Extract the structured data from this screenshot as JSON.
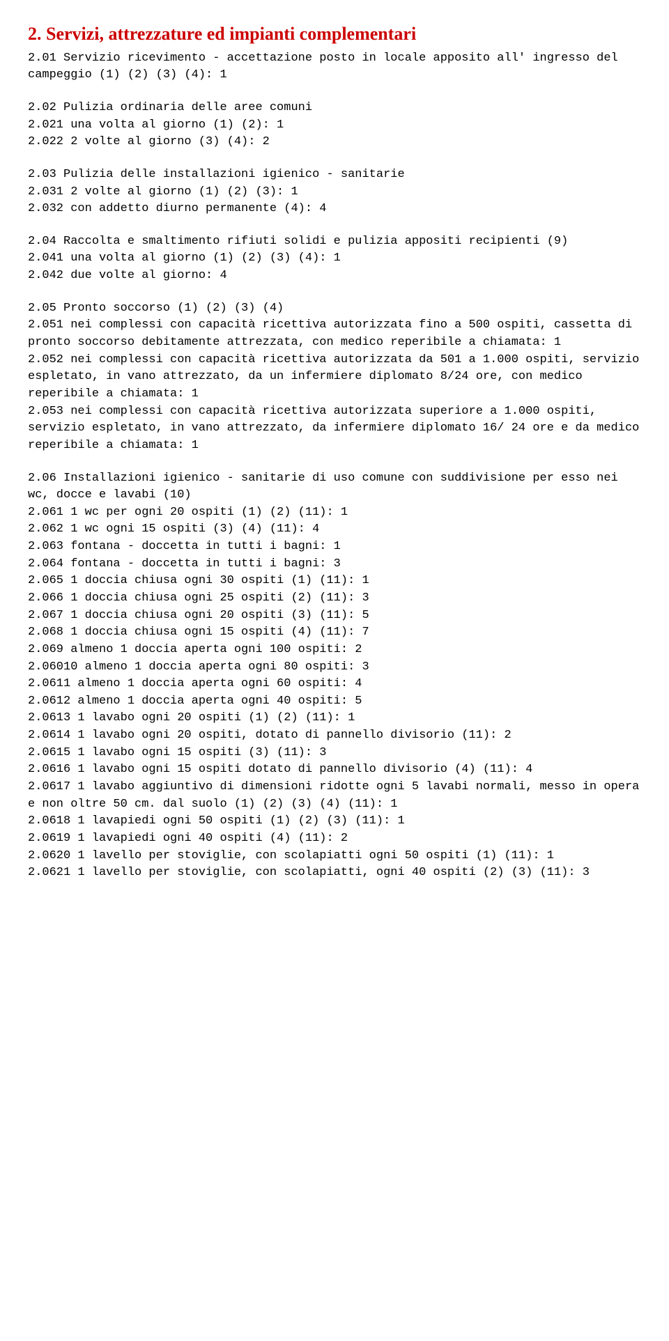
{
  "heading": "2. Servizi, attrezzature ed impianti complementari",
  "sections": [
    {
      "lines": [
        "2.01 Servizio ricevimento - accettazione posto in locale apposito all' ingresso del campeggio (1) (2) (3) (4): 1"
      ]
    },
    {
      "lines": [
        "2.02 Pulizia ordinaria delle aree comuni",
        "2.021 una volta al giorno (1) (2): 1",
        "2.022 2 volte al giorno (3) (4): 2"
      ]
    },
    {
      "lines": [
        "2.03 Pulizia delle installazioni igienico - sanitarie",
        "2.031 2 volte al giorno (1) (2) (3): 1",
        "2.032 con addetto diurno permanente (4): 4"
      ]
    },
    {
      "lines": [
        "2.04 Raccolta e smaltimento rifiuti solidi e pulizia appositi recipienti (9)",
        "2.041 una volta al giorno (1) (2) (3) (4): 1",
        "2.042 due volte al giorno: 4"
      ]
    },
    {
      "lines": [
        "2.05 Pronto soccorso (1) (2) (3) (4)",
        "2.051 nei complessi con capacità  ricettiva autorizzata fino a 500 ospiti, cassetta di pronto soccorso debitamente attrezzata, con medico reperibile a chiamata: 1",
        "2.052 nei complessi con capacità  ricettiva autorizzata da 501 a 1.000 ospiti, servizio espletato, in vano attrezzato, da un infermiere diplomato 8/24 ore, con medico reperibile a chiamata: 1",
        "2.053 nei complessi con capacità  ricettiva autorizzata superiore a 1.000 ospiti, servizio espletato, in vano attrezzato, da infermiere diplomato 16/ 24 ore e da medico reperibile a chiamata: 1"
      ]
    },
    {
      "lines": [
        "2.06 Installazioni igienico - sanitarie di uso comune con suddivisione per esso nei wc, docce e lavabi (10)",
        "2.061 1 wc per ogni 20 ospiti (1) (2) (11): 1",
        "2.062 1 wc ogni 15 ospiti (3) (4) (11): 4",
        "2.063 fontana - doccetta in tutti i bagni: 1",
        "2.064 fontana - doccetta in tutti i bagni: 3",
        "2.065 1 doccia chiusa ogni 30 ospiti (1) (11): 1",
        "2.066 1 doccia chiusa ogni 25 ospiti (2) (11): 3",
        "2.067 1 doccia chiusa ogni 20 ospiti (3) (11): 5",
        "2.068 1 doccia chiusa ogni 15 ospiti (4) (11): 7",
        "2.069 almeno 1 doccia aperta ogni 100 ospiti: 2",
        "2.06010 almeno 1 doccia aperta ogni 80 ospiti: 3",
        "2.0611 almeno 1 doccia aperta ogni 60 ospiti: 4",
        "2.0612 almeno 1 doccia aperta ogni 40 ospiti: 5",
        "2.0613 1 lavabo ogni 20 ospiti (1) (2) (11): 1",
        "2.0614 1 lavabo ogni 20 ospiti, dotato di pannello divisorio (11): 2",
        "2.0615 1 lavabo ogni 15 ospiti (3) (11): 3",
        "2.0616 1 lavabo ogni 15 ospiti dotato di pannello divisorio (4) (11): 4",
        "2.0617 1 lavabo aggiuntivo di dimensioni ridotte ogni 5 lavabi normali, messo in opera e non oltre 50 cm. dal suolo (1) (2) (3) (4) (11): 1",
        "2.0618 1 lavapiedi ogni 50 ospiti (1) (2) (3) (11): 1",
        "2.0619 1 lavapiedi ogni 40 ospiti (4) (11): 2",
        "2.0620 1 lavello per stoviglie, con scolapiatti ogni 50 ospiti (1) (11): 1",
        "2.0621 1 lavello per stoviglie, con scolapiatti, ogni 40 ospiti (2) (3) (11): 3"
      ]
    }
  ]
}
